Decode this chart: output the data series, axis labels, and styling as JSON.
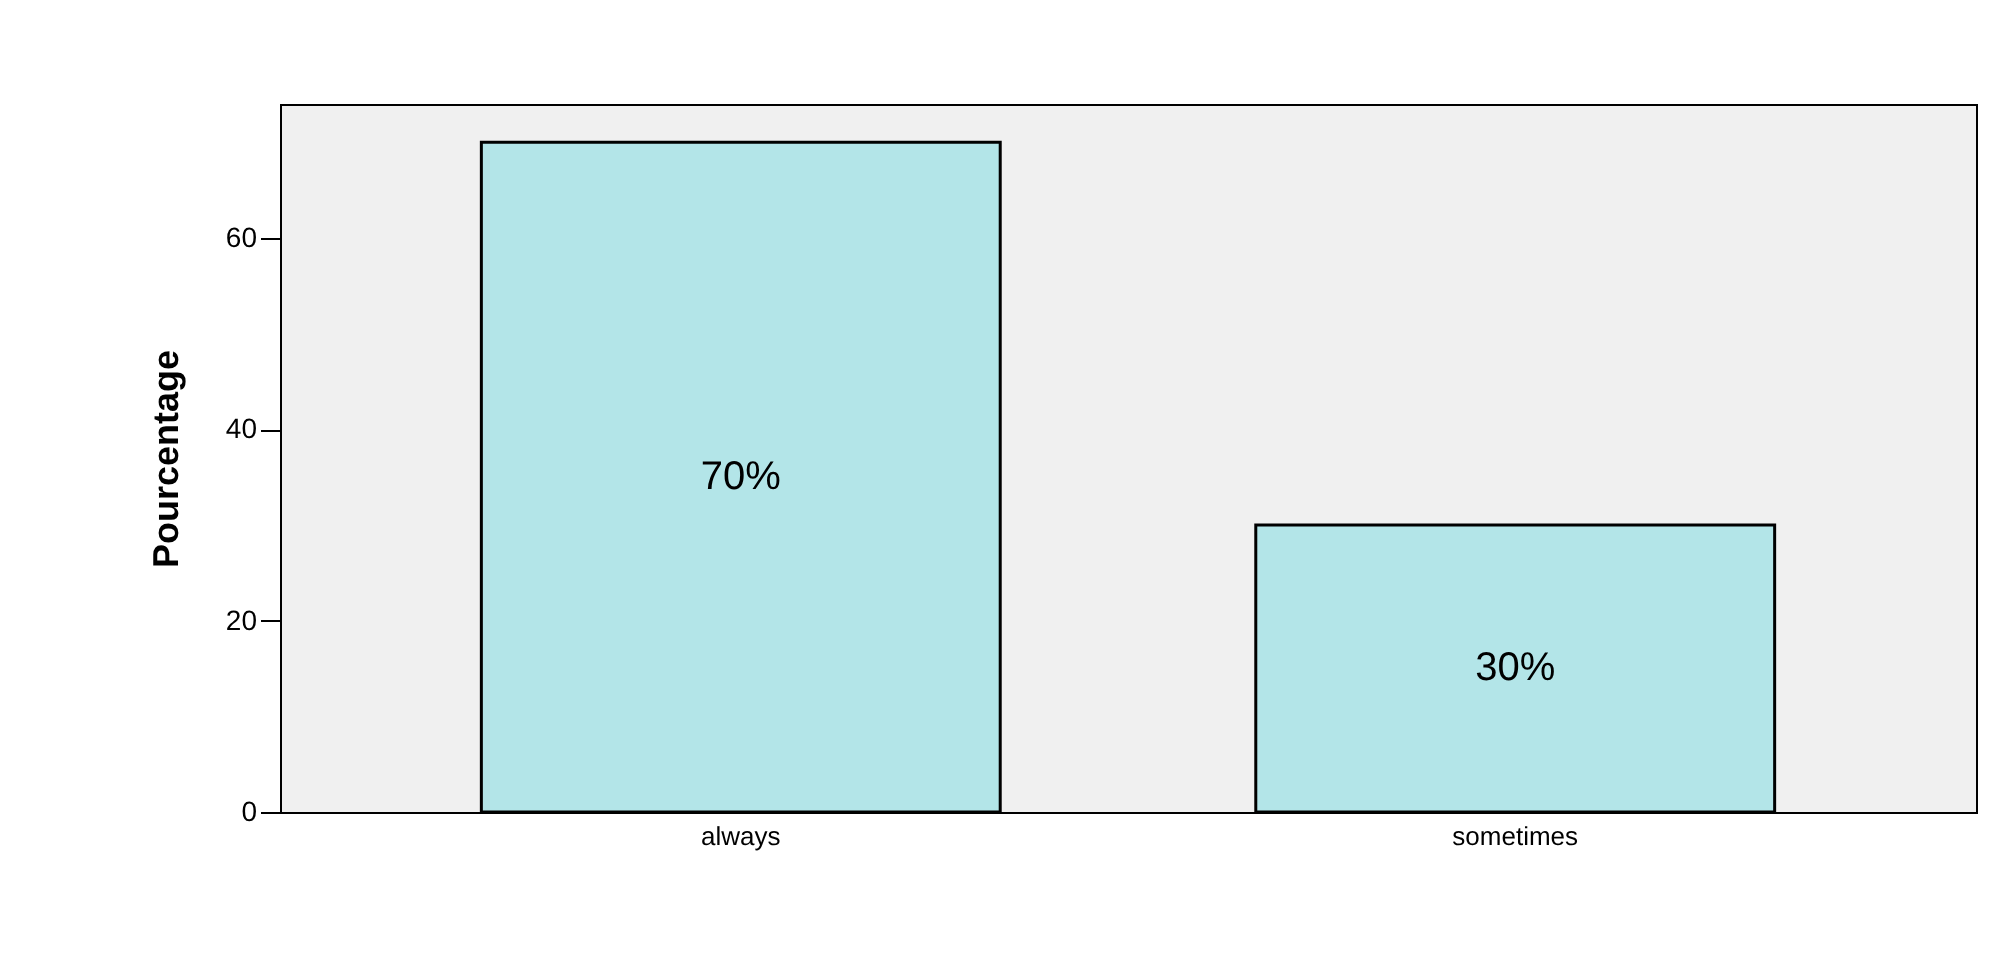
{
  "chart_data": {
    "type": "bar",
    "ylabel": "Pourcentage",
    "categories": [
      "always",
      "sometimes"
    ],
    "values": [
      70,
      30
    ],
    "color": "#b3e5e8",
    "value_labels": [
      "70%",
      "30%"
    ],
    "ylim": [
      0,
      74
    ],
    "yticks": [
      0,
      20,
      40,
      60
    ],
    "grid": false
  }
}
